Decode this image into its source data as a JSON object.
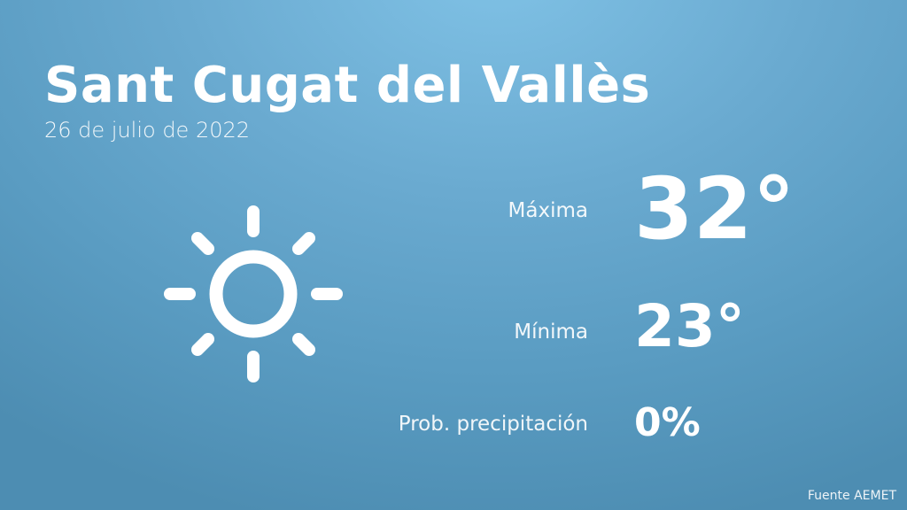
{
  "header": {
    "city": "Sant Cugat del Vallès",
    "date": "26 de julio de 2022"
  },
  "weather_icon": "sun-icon",
  "stats": {
    "max_label": "Máxima",
    "max_value": "32°",
    "min_label": "Mínima",
    "min_value": "23°",
    "precip_label": "Prob. precipitación",
    "precip_value": "0%"
  },
  "footer": {
    "source": "Fuente AEMET"
  },
  "colors": {
    "background_top": "#80c2e6",
    "background_bottom": "#4d8db2",
    "text": "#ffffff"
  }
}
